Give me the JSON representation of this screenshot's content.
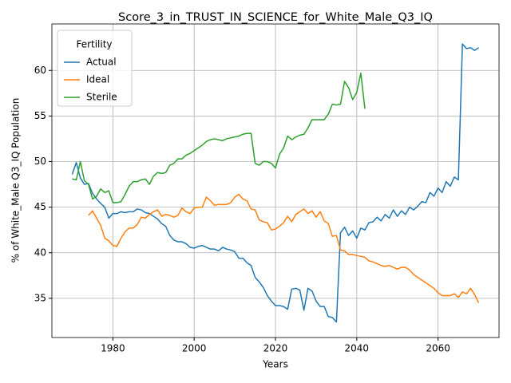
{
  "chart_data": {
    "type": "line",
    "title": "Score_3_in_TRUST_IN_SCIENCE_for_White_Male_Q3_IQ",
    "xlabel": "Years",
    "ylabel": "% of White_Male Q3_IQ Population",
    "x": [
      1970,
      1971,
      1972,
      1973,
      1974,
      1975,
      1976,
      1977,
      1978,
      1979,
      1980,
      1981,
      1982,
      1983,
      1984,
      1985,
      1986,
      1987,
      1988,
      1989,
      1990,
      1991,
      1992,
      1993,
      1994,
      1995,
      1996,
      1997,
      1998,
      1999,
      2000,
      2001,
      2002,
      2003,
      2004,
      2005,
      2006,
      2007,
      2008,
      2009,
      2010,
      2011,
      2012,
      2013,
      2014,
      2015,
      2016,
      2017,
      2018,
      2019,
      2020,
      2021,
      2022,
      2023,
      2024,
      2025,
      2026,
      2027,
      2028,
      2029,
      2030,
      2031,
      2032,
      2033,
      2034,
      2035,
      2036,
      2037,
      2038,
      2039,
      2040,
      2041,
      2042,
      2043,
      2044,
      2045,
      2046,
      2047,
      2048,
      2049,
      2050,
      2051,
      2052,
      2053,
      2054,
      2055,
      2056,
      2057,
      2058,
      2059,
      2060,
      2061,
      2062,
      2063,
      2064,
      2065,
      2066,
      2067,
      2068,
      2069,
      2070
    ],
    "series": [
      {
        "name": "Actual",
        "color": "#1f77b4",
        "values": [
          48.6,
          49.9,
          48.2,
          47.5,
          47.6,
          46.5,
          45.9,
          45.4,
          45.0,
          43.8,
          44.3,
          44.3,
          44.5,
          44.4,
          44.5,
          44.5,
          44.8,
          44.7,
          44.4,
          44.3,
          44.0,
          43.7,
          43.2,
          42.9,
          41.9,
          41.4,
          41.2,
          41.2,
          41.0,
          40.6,
          40.5,
          40.7,
          40.8,
          40.6,
          40.4,
          40.4,
          40.2,
          40.6,
          40.4,
          40.3,
          40.1,
          39.4,
          39.4,
          38.9,
          38.6,
          37.3,
          36.8,
          36.2,
          35.3,
          34.7,
          34.2,
          34.2,
          34.1,
          33.8,
          36.0,
          36.1,
          35.9,
          33.7,
          36.1,
          35.8,
          34.7,
          34.1,
          34.1,
          33.0,
          32.9,
          32.4,
          42.2,
          42.8,
          41.9,
          42.4,
          41.6,
          42.7,
          42.5,
          43.3,
          43.4,
          43.9,
          43.5,
          44.2,
          43.8,
          44.7,
          44.0,
          44.6,
          44.2,
          45.0,
          44.7,
          45.1,
          45.6,
          45.5,
          46.6,
          46.2,
          47.1,
          46.6,
          47.8,
          47.3,
          48.3,
          48.0,
          62.9,
          62.4,
          62.5,
          62.2,
          62.5
        ]
      },
      {
        "name": "Ideal",
        "color": "#ff7f0e",
        "values": [
          null,
          null,
          null,
          null,
          44.1,
          44.6,
          43.8,
          43.0,
          41.6,
          41.3,
          40.8,
          40.7,
          41.6,
          42.3,
          42.7,
          42.7,
          43.1,
          43.9,
          43.8,
          44.2,
          44.5,
          44.7,
          44.0,
          44.2,
          44.1,
          43.9,
          44.1,
          44.9,
          44.5,
          44.3,
          44.9,
          45.0,
          45.0,
          46.1,
          45.7,
          45.2,
          45.3,
          45.3,
          45.3,
          45.5,
          46.1,
          46.4,
          45.9,
          45.7,
          44.8,
          44.7,
          43.6,
          43.4,
          43.3,
          42.5,
          42.6,
          42.9,
          43.3,
          44.0,
          43.4,
          44.2,
          44.5,
          44.8,
          44.3,
          44.6,
          43.9,
          44.5,
          43.5,
          43.2,
          41.8,
          41.9,
          40.3,
          40.2,
          39.8,
          39.8,
          39.7,
          39.6,
          39.5,
          39.1,
          39.0,
          38.8,
          38.6,
          38.5,
          38.6,
          38.4,
          38.2,
          38.4,
          38.4,
          38.1,
          37.6,
          37.3,
          37.0,
          36.7,
          36.4,
          36.1,
          35.6,
          35.3,
          35.3,
          35.3,
          35.5,
          35.1,
          35.7,
          35.5,
          36.1,
          35.4,
          34.5
        ]
      },
      {
        "name": "Sterile",
        "color": "#2ca02c",
        "values": [
          48.1,
          48.0,
          50.0,
          47.9,
          47.5,
          45.9,
          46.2,
          47.0,
          46.6,
          46.8,
          45.5,
          45.5,
          45.6,
          46.4,
          47.3,
          47.8,
          47.8,
          48.0,
          48.1,
          47.5,
          48.4,
          48.8,
          48.7,
          48.8,
          49.6,
          49.8,
          50.3,
          50.3,
          50.7,
          50.9,
          51.2,
          51.5,
          51.8,
          52.2,
          52.4,
          52.5,
          52.4,
          52.3,
          52.5,
          52.6,
          52.7,
          52.8,
          53.0,
          53.1,
          53.1,
          49.8,
          49.6,
          50.0,
          50.0,
          49.8,
          49.3,
          50.8,
          51.5,
          52.8,
          52.4,
          52.7,
          52.9,
          53.0,
          53.7,
          54.6,
          54.6,
          54.6,
          54.6,
          55.2,
          56.3,
          56.2,
          56.3,
          58.8,
          58.1,
          56.8,
          57.6,
          59.7,
          55.8,
          null,
          null,
          null,
          null,
          null,
          null,
          null,
          null,
          null,
          null,
          null,
          null,
          null,
          null,
          null,
          null,
          null,
          null,
          null,
          null,
          null,
          null,
          null,
          null,
          null,
          null,
          null,
          null
        ]
      }
    ],
    "xlim": [
      1965,
      2075
    ],
    "xticks": [
      1980,
      2000,
      2020,
      2040,
      2060
    ],
    "ylim": [
      30.7,
      65.1
    ],
    "yticks": [
      35,
      40,
      45,
      50,
      55,
      60
    ],
    "grid": true,
    "legend_title": "Fertility",
    "legend": "upper left"
  }
}
